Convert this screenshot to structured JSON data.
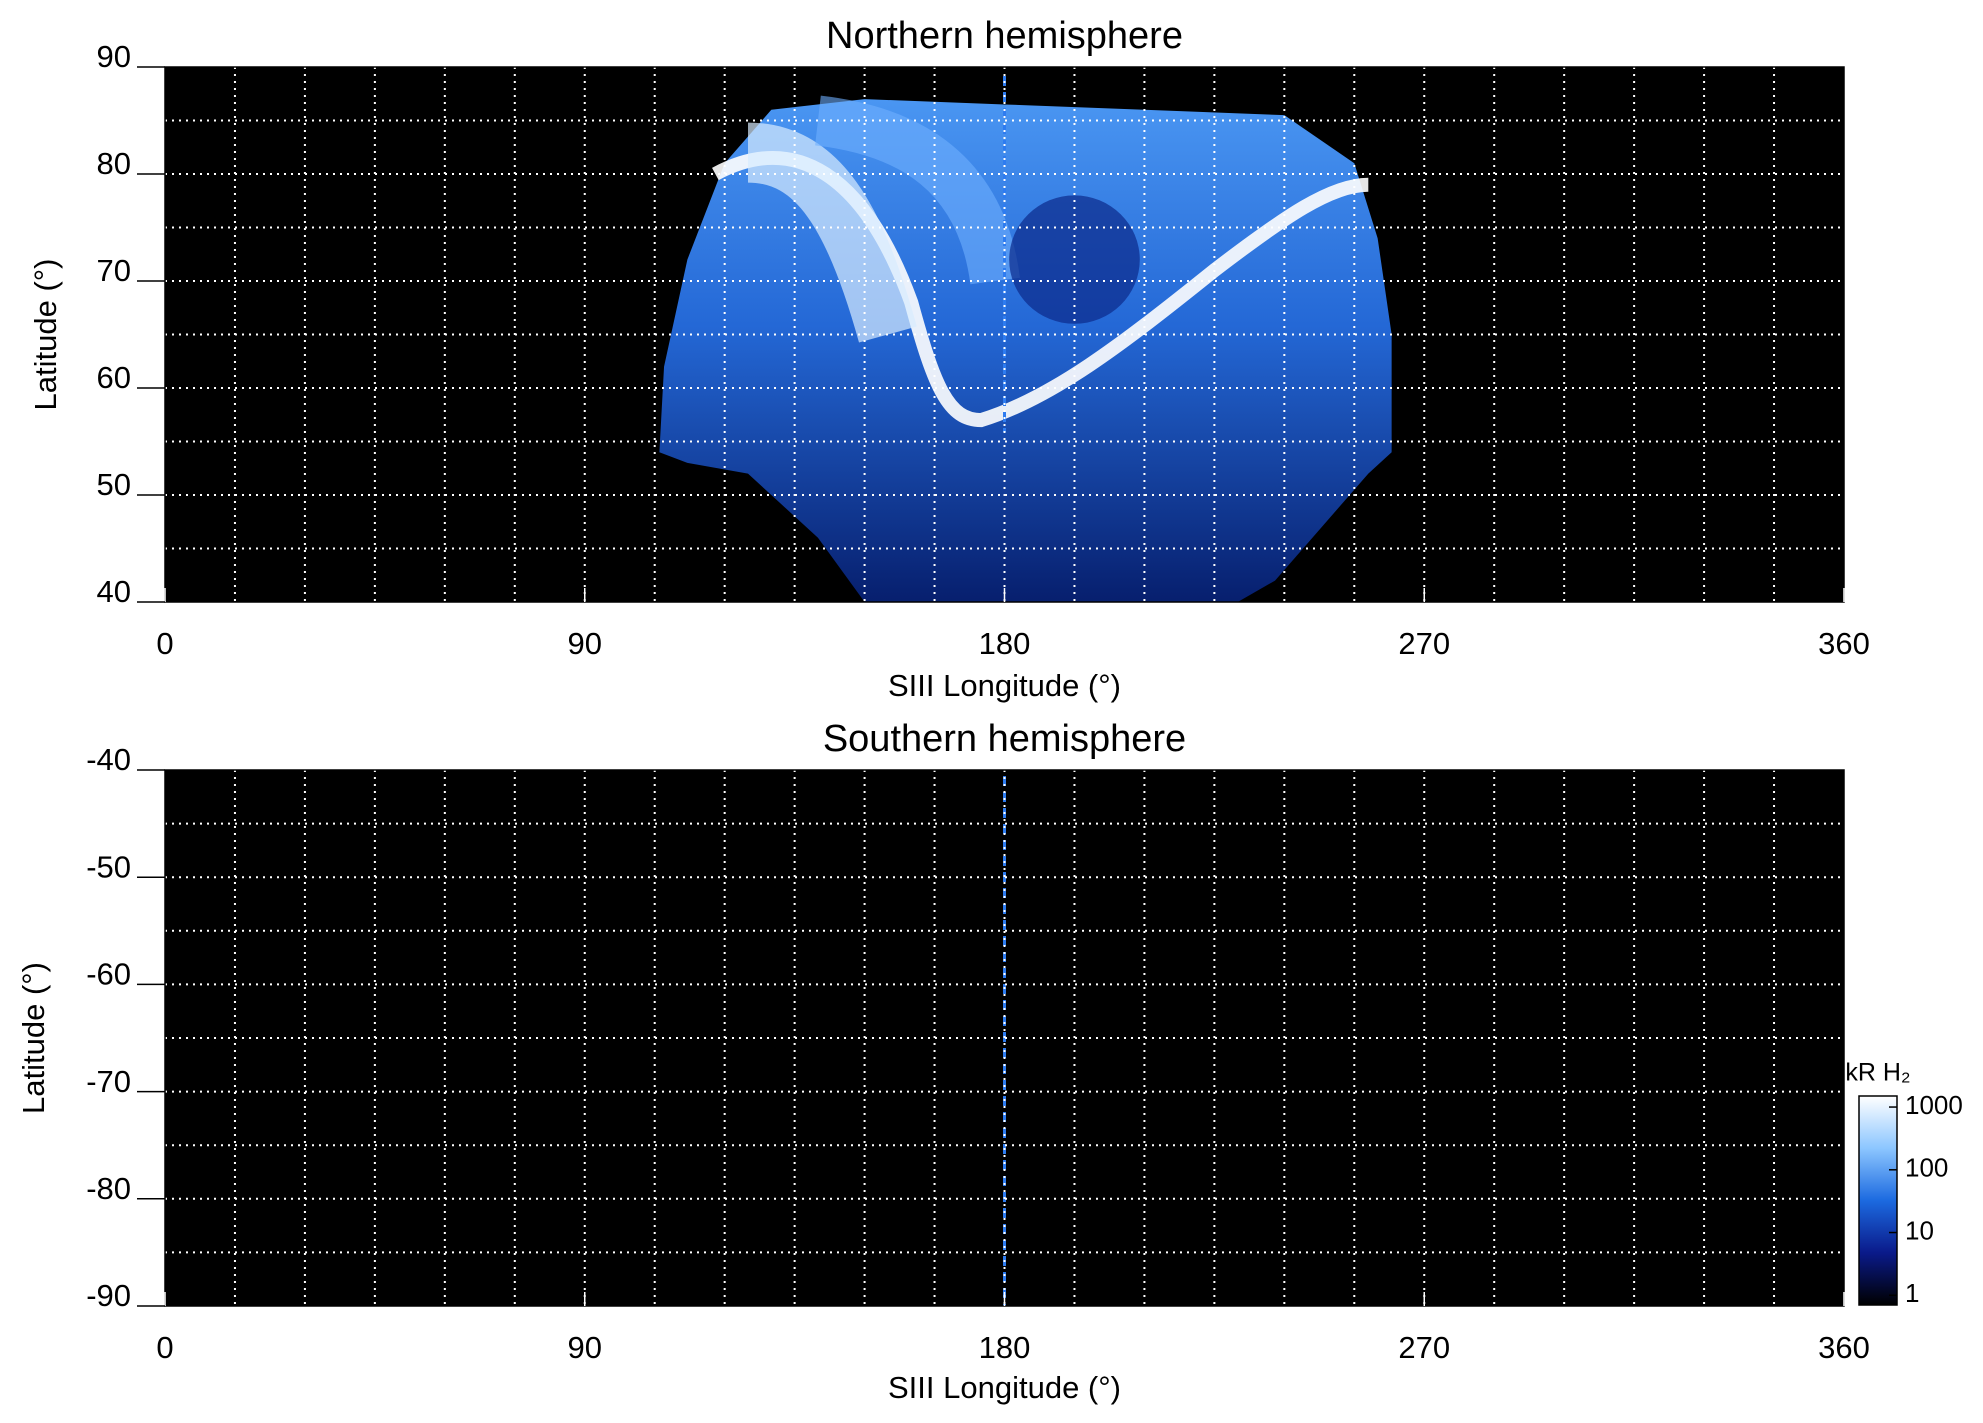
{
  "chart_data": [
    {
      "type": "image",
      "title": "Northern hemisphere",
      "x_label": "SIII Longitude (°)",
      "y_label": "Latitude (°)",
      "xlim": [
        0,
        360
      ],
      "ylim": [
        40,
        90
      ],
      "xticks": [
        0,
        90,
        180,
        270,
        360
      ],
      "yticks": [
        40,
        50,
        60,
        70,
        80,
        90
      ],
      "xgrid": [
        15,
        30,
        45,
        60,
        75,
        90,
        105,
        120,
        135,
        150,
        165,
        180,
        195,
        210,
        225,
        240,
        255,
        270,
        285,
        300,
        315,
        330,
        345
      ],
      "ygrid": [
        45,
        50,
        55,
        60,
        65,
        70,
        75,
        80,
        85
      ],
      "grid": true
    },
    {
      "type": "image",
      "title": "Southern hemisphere",
      "x_label": "SIII Longitude (°)",
      "y_label": "Latitude (°)",
      "xlim": [
        0,
        360
      ],
      "ylim": [
        -90,
        -40
      ],
      "xticks": [
        0,
        90,
        180,
        270,
        360
      ],
      "yticks": [
        -90,
        -80,
        -70,
        -60,
        -50,
        -40
      ],
      "xgrid": [
        15,
        30,
        45,
        60,
        75,
        90,
        105,
        120,
        135,
        150,
        165,
        180,
        195,
        210,
        225,
        240,
        255,
        270,
        285,
        300,
        315,
        330,
        345
      ],
      "ygrid": [
        -85,
        -80,
        -75,
        -70,
        -65,
        -60,
        -55,
        -50,
        -45
      ],
      "grid": true,
      "colorbar": {
        "label": "kR H₂",
        "log": true,
        "lim": [
          0.7,
          1500
        ],
        "ticks": [
          1,
          10,
          100,
          1000
        ],
        "colors": [
          "#000000",
          "#0a1a8a",
          "#1c6ae0",
          "#8cc6ff",
          "#ffffff"
        ]
      }
    }
  ]
}
